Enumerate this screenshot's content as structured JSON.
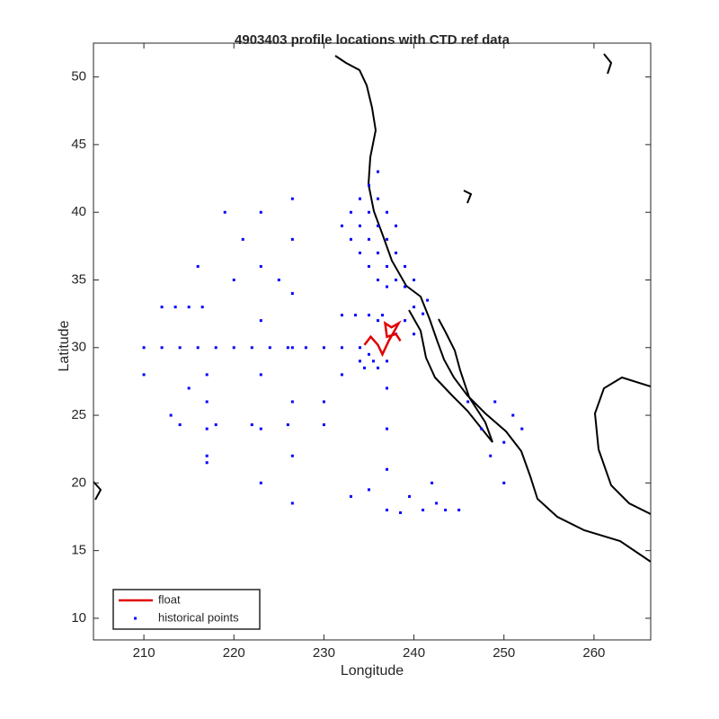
{
  "chart_data": {
    "type": "scatter",
    "title": "4903403 profile locations with CTD ref data",
    "xlabel": "Longitude",
    "ylabel": "Latitude",
    "xlim": [
      204.4,
      266.3
    ],
    "ylim": [
      8.4,
      52.5
    ],
    "xticks": [
      210,
      220,
      230,
      240,
      250,
      260
    ],
    "yticks": [
      10,
      15,
      20,
      25,
      30,
      35,
      40,
      45,
      50
    ],
    "legend": "lower left",
    "series": [
      {
        "name": "float",
        "color": "#e00000",
        "mode": "line",
        "x": [
          234.5,
          235.2,
          236,
          236.5,
          237.2,
          237.8,
          238.3,
          237.5,
          236.8,
          237,
          238,
          238.5
        ],
        "y": [
          30.2,
          30.8,
          30.2,
          29.5,
          30.5,
          31.2,
          31.8,
          31.5,
          31.8,
          30.8,
          31,
          30.5
        ]
      },
      {
        "name": "historical points",
        "color": "#0000ff",
        "mode": "marker",
        "x": [
          210,
          212,
          214,
          216,
          218,
          220,
          222,
          224,
          226,
          228,
          230,
          232,
          212,
          213.5,
          215,
          216.5,
          217,
          217,
          217,
          217,
          217,
          223,
          223,
          223,
          223,
          223,
          223,
          226.5,
          226.5,
          226.5,
          226.5,
          226.5,
          226.5,
          226.5,
          214,
          218,
          222,
          226,
          230,
          230,
          232,
          234,
          236,
          237,
          237,
          237,
          237,
          237,
          238.5,
          241,
          243.5,
          245,
          246,
          247.5,
          248.5,
          250,
          250,
          251,
          249,
          252,
          233,
          234,
          235,
          236,
          237,
          238,
          239,
          234,
          235,
          236,
          235,
          236,
          237,
          238,
          239,
          240,
          233,
          234,
          235,
          236,
          237,
          232,
          236,
          237,
          238,
          232,
          233.5,
          235,
          236.5,
          238,
          239,
          240,
          241,
          240,
          241.5,
          220,
          221,
          219,
          215,
          213,
          210,
          216,
          225,
          234,
          235,
          234.5,
          235.5,
          236,
          233,
          235,
          239.5,
          242,
          242.5
        ],
        "y": [
          30,
          30,
          30,
          30,
          30,
          30,
          30,
          30,
          30,
          30,
          30,
          30,
          33,
          33,
          33,
          33,
          22,
          24,
          26,
          28,
          21.5,
          20,
          24,
          28,
          32,
          36,
          40,
          18.5,
          22,
          26,
          30,
          34,
          38,
          41,
          24.3,
          24.3,
          24.3,
          24.3,
          24.3,
          26,
          28,
          30,
          32,
          18,
          21,
          24,
          27,
          29,
          17.8,
          18,
          18,
          18,
          26,
          24,
          22,
          20,
          23,
          25,
          26,
          24,
          40,
          39,
          38,
          37,
          36,
          35,
          34.5,
          41,
          42,
          43,
          40,
          39,
          38,
          37,
          36,
          35,
          38,
          37,
          36,
          35,
          34.5,
          39,
          41,
          40,
          39,
          32.4,
          32.4,
          32.4,
          32.4,
          31,
          32,
          33,
          32.5,
          31,
          33.5,
          35,
          38,
          40,
          27,
          25,
          28,
          36,
          35,
          29,
          29.5,
          28.5,
          29,
          28.5,
          19,
          19.5,
          19,
          20,
          18.5
        ]
      }
    ]
  }
}
